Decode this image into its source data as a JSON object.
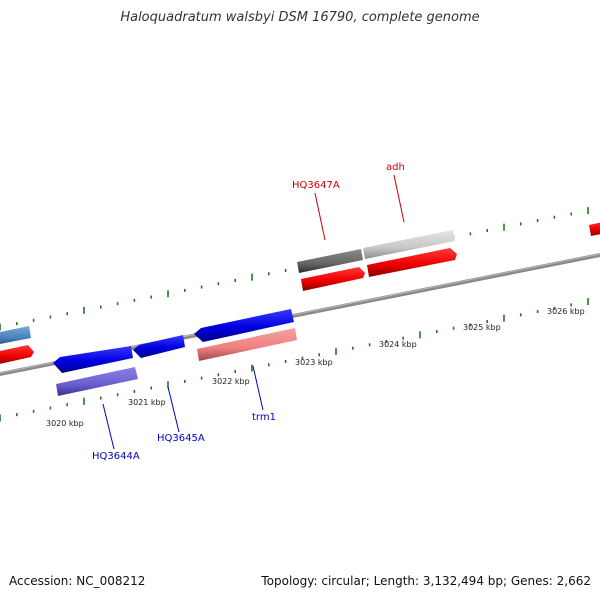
{
  "title": "Haloquadratum walsbyi DSM 16790, complete genome",
  "footer": {
    "accession": "Accession: NC_008212",
    "summary": "Topology: circular; Length: 3,132,494 bp; Genes: 2,662"
  },
  "colors": {
    "backbone": "#8a8a8a",
    "tick": "#1f7a1f",
    "forward_label": "#cc0000",
    "reverse_label": "#0000cc"
  },
  "ruler": {
    "unit": "kbp",
    "ticks": [
      {
        "label": "3020 kbp"
      },
      {
        "label": "3021 kbp"
      },
      {
        "label": "3022 kbp"
      },
      {
        "label": "3023 kbp"
      },
      {
        "label": "3024 kbp"
      },
      {
        "label": "3025 kbp"
      },
      {
        "label": "3026 kbp"
      }
    ]
  },
  "genes": [
    {
      "name": "HQ3647A",
      "strand": "forward",
      "color": "#cc0000"
    },
    {
      "name": "adh",
      "strand": "forward",
      "color": "#cc0000"
    },
    {
      "name": "HQ3644A",
      "strand": "reverse",
      "color": "#0000cc"
    },
    {
      "name": "HQ3645A",
      "strand": "reverse",
      "color": "#0000cc"
    },
    {
      "name": "trm1",
      "strand": "reverse",
      "color": "#0000cc"
    }
  ]
}
